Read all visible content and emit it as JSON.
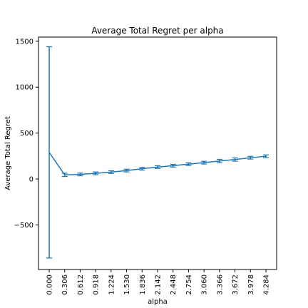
{
  "chart_data": {
    "type": "line",
    "title": "Average Total Regret per alpha",
    "xlabel": "alpha",
    "ylabel": "Average Total Regret",
    "x": [
      "0.000",
      "0.306",
      "0.612",
      "0.918",
      "1.224",
      "1.530",
      "1.836",
      "2.142",
      "2.448",
      "2.754",
      "3.060",
      "3.366",
      "3.672",
      "3.978",
      "4.284"
    ],
    "series": [
      {
        "values": [
          290,
          45,
          50,
          62,
          75,
          92,
          112,
          130,
          145,
          162,
          178,
          196,
          212,
          232,
          248
        ],
        "error": [
          1150,
          18,
          15,
          15,
          15,
          15,
          15,
          15,
          15,
          15,
          15,
          18,
          18,
          15,
          15
        ],
        "color": "#1f77b4"
      }
    ],
    "yticks": [
      -500,
      0,
      500,
      1000,
      1500
    ],
    "ylim": [
      -985,
      1545
    ],
    "grid": false
  }
}
